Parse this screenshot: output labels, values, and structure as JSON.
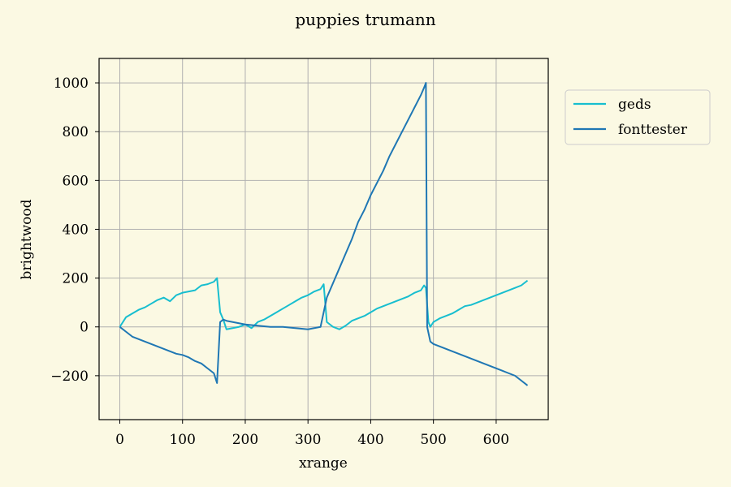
{
  "page": {
    "background": "#fbf9e3"
  },
  "chart_data": {
    "type": "line",
    "title": "puppies trumann",
    "xlabel": "xrange",
    "ylabel": "brightwood",
    "xlim": [
      -33,
      683
    ],
    "ylim": [
      -380,
      1100
    ],
    "xticks": [
      0,
      100,
      200,
      300,
      400,
      500,
      600
    ],
    "yticks": [
      -200,
      0,
      200,
      400,
      600,
      800,
      1000
    ],
    "ytick_labels": [
      "−200",
      "0",
      "200",
      "400",
      "600",
      "800",
      "1000"
    ],
    "grid": true,
    "legend": {
      "position": "outside-right-top"
    },
    "series": [
      {
        "name": "geds",
        "color": "#17becf",
        "x": [
          0,
          10,
          20,
          30,
          40,
          50,
          60,
          70,
          80,
          90,
          100,
          110,
          120,
          130,
          140,
          150,
          155,
          160,
          165,
          170,
          180,
          190,
          200,
          210,
          220,
          230,
          240,
          250,
          260,
          270,
          280,
          290,
          300,
          310,
          320,
          325,
          330,
          340,
          350,
          360,
          370,
          380,
          390,
          400,
          410,
          420,
          430,
          440,
          450,
          460,
          470,
          480,
          485,
          488,
          492,
          495,
          500,
          510,
          520,
          530,
          540,
          550,
          560,
          570,
          580,
          590,
          600,
          610,
          620,
          630,
          640,
          650
        ],
        "values": [
          0,
          40,
          55,
          70,
          80,
          95,
          110,
          120,
          105,
          130,
          140,
          145,
          150,
          170,
          175,
          185,
          200,
          60,
          30,
          -10,
          -5,
          0,
          10,
          -5,
          20,
          30,
          45,
          60,
          75,
          90,
          105,
          120,
          130,
          145,
          155,
          175,
          20,
          0,
          -10,
          5,
          25,
          35,
          45,
          60,
          75,
          85,
          95,
          105,
          115,
          125,
          140,
          150,
          170,
          160,
          20,
          0,
          20,
          35,
          45,
          55,
          70,
          85,
          90,
          100,
          110,
          120,
          130,
          140,
          150,
          160,
          170,
          190
        ]
      },
      {
        "name": "fonttester",
        "color": "#1f77b4",
        "x": [
          0,
          10,
          20,
          30,
          40,
          50,
          60,
          70,
          80,
          90,
          100,
          110,
          120,
          130,
          140,
          150,
          155,
          160,
          165,
          170,
          180,
          190,
          200,
          220,
          240,
          260,
          280,
          300,
          320,
          330,
          340,
          350,
          360,
          370,
          380,
          390,
          400,
          410,
          420,
          430,
          440,
          450,
          460,
          470,
          480,
          485,
          488,
          490,
          495,
          500,
          510,
          520,
          530,
          540,
          550,
          560,
          570,
          580,
          590,
          600,
          610,
          620,
          630,
          640,
          650
        ],
        "values": [
          0,
          -20,
          -40,
          -50,
          -60,
          -70,
          -80,
          -90,
          -100,
          -110,
          -115,
          -125,
          -140,
          -150,
          -170,
          -190,
          -230,
          20,
          30,
          25,
          20,
          15,
          10,
          5,
          0,
          0,
          -5,
          -10,
          0,
          120,
          180,
          240,
          300,
          360,
          430,
          480,
          540,
          590,
          640,
          700,
          750,
          800,
          850,
          900,
          950,
          980,
          1000,
          0,
          -60,
          -70,
          -80,
          -90,
          -100,
          -110,
          -120,
          -130,
          -140,
          -150,
          -160,
          -170,
          -180,
          -190,
          -200,
          -220,
          -240
        ]
      }
    ]
  }
}
